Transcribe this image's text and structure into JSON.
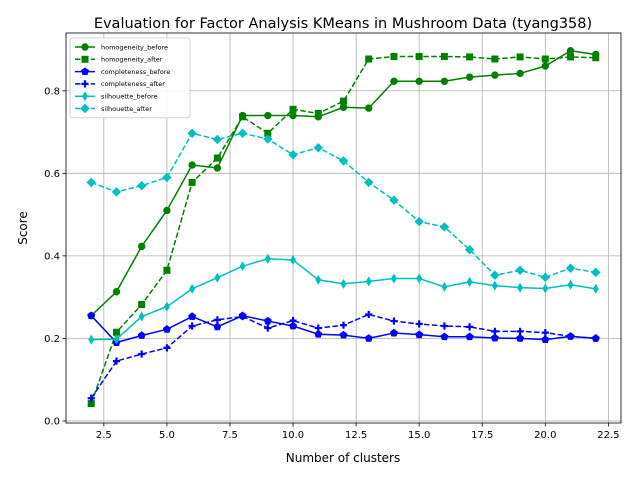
{
  "chart_data": {
    "type": "line",
    "title": "Evaluation for Factor Analysis KMeans in Mushroom Data (tyang358)",
    "xlabel": "Number of clusters",
    "ylabel": "Score",
    "xlim": [
      1.0,
      23.0
    ],
    "ylim": [
      -0.005,
      0.94
    ],
    "xticks": [
      2.5,
      5.0,
      7.5,
      10.0,
      12.5,
      15.0,
      17.5,
      20.0,
      22.5
    ],
    "xtick_labels": [
      "2.5",
      "5.0",
      "7.5",
      "10.0",
      "12.5",
      "15.0",
      "17.5",
      "20.0",
      "22.5"
    ],
    "yticks": [
      0.0,
      0.2,
      0.4,
      0.6,
      0.8
    ],
    "ytick_labels": [
      "0.0",
      "0.2",
      "0.4",
      "0.6",
      "0.8"
    ],
    "grid": true,
    "legend_position": "top-left",
    "x": [
      2,
      3,
      4,
      5,
      6,
      7,
      8,
      9,
      10,
      11,
      12,
      13,
      14,
      15,
      16,
      17,
      18,
      19,
      20,
      21,
      22
    ],
    "series": [
      {
        "name": "homogeneity_before",
        "color": "#008000",
        "linestyle": "solid",
        "marker": "circle",
        "values": [
          0.255,
          0.313,
          0.423,
          0.51,
          0.62,
          0.613,
          0.74,
          0.74,
          0.74,
          0.737,
          0.76,
          0.758,
          0.823,
          0.823,
          0.823,
          0.833,
          0.838,
          0.842,
          0.86,
          0.897,
          0.888
        ]
      },
      {
        "name": "homogeneity_after",
        "color": "#008000",
        "linestyle": "dashed",
        "marker": "square",
        "values": [
          0.042,
          0.215,
          0.282,
          0.365,
          0.578,
          0.637,
          0.737,
          0.697,
          0.755,
          0.745,
          0.775,
          0.877,
          0.883,
          0.883,
          0.883,
          0.882,
          0.877,
          0.882,
          0.877,
          0.882,
          0.88
        ]
      },
      {
        "name": "completeness_before",
        "color": "#0000ff",
        "linestyle": "solid",
        "marker": "pentagon",
        "values": [
          0.255,
          0.19,
          0.207,
          0.222,
          0.253,
          0.228,
          0.255,
          0.242,
          0.23,
          0.21,
          0.208,
          0.2,
          0.213,
          0.209,
          0.204,
          0.204,
          0.201,
          0.2,
          0.197,
          0.205,
          0.2
        ]
      },
      {
        "name": "completeness_after",
        "color": "#0000ff",
        "linestyle": "dashed",
        "marker": "plus",
        "values": [
          0.055,
          0.145,
          0.162,
          0.177,
          0.23,
          0.245,
          0.253,
          0.225,
          0.243,
          0.225,
          0.232,
          0.258,
          0.242,
          0.235,
          0.23,
          0.228,
          0.217,
          0.217,
          0.214,
          0.205,
          0.2
        ]
      },
      {
        "name": "silhouette_before",
        "color": "#00bfbf",
        "linestyle": "solid",
        "marker": "thin_diamond",
        "values": [
          0.197,
          0.198,
          0.253,
          0.277,
          0.32,
          0.347,
          0.375,
          0.393,
          0.39,
          0.342,
          0.332,
          0.338,
          0.345,
          0.345,
          0.325,
          0.337,
          0.328,
          0.323,
          0.321,
          0.33,
          0.32
        ]
      },
      {
        "name": "silhouette_after",
        "color": "#00bfbf",
        "linestyle": "dashed",
        "marker": "diamond",
        "values": [
          0.578,
          0.555,
          0.57,
          0.59,
          0.697,
          0.682,
          0.697,
          0.683,
          0.645,
          0.662,
          0.63,
          0.578,
          0.535,
          0.483,
          0.47,
          0.415,
          0.353,
          0.365,
          0.348,
          0.37,
          0.36
        ]
      }
    ]
  }
}
